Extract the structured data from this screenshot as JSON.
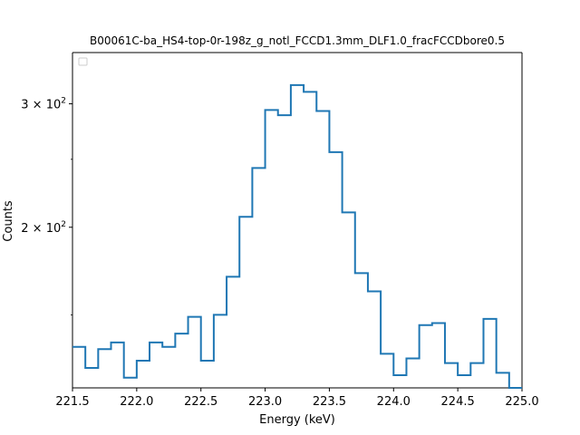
{
  "chart_data": {
    "type": "step",
    "title": "B00061C-ba_HS4-top-0r-198z_g_notl_FCCD1.3mm_DLF1.0_fracFCCDbore0.5",
    "xlabel": "Energy (keV)",
    "ylabel": "Counts",
    "xlim": [
      221.5,
      225.0
    ],
    "ylim": [
      118,
      355
    ],
    "yscale": "log",
    "x_ticks": [
      221.5,
      222.0,
      222.5,
      223.0,
      223.5,
      224.0,
      224.5,
      225.0
    ],
    "x_tick_labels": [
      "221.5",
      "222.0",
      "222.5",
      "223.0",
      "223.5",
      "224.0",
      "224.5",
      "225.0"
    ],
    "y_ticks": [
      200,
      300
    ],
    "y_tick_labels": [
      {
        "mantissa": "2 × 10",
        "exponent": "2"
      },
      {
        "mantissa": "3 × 10",
        "exponent": "2"
      }
    ],
    "legend": "top-left (empty)",
    "bin_edges": [
      221.5,
      221.6,
      221.7,
      221.8,
      221.9,
      222.0,
      222.1,
      222.2,
      222.3,
      222.4,
      222.5,
      222.6,
      222.7,
      222.8,
      222.9,
      223.0,
      223.1,
      223.2,
      223.3,
      223.4,
      223.5,
      223.6,
      223.7,
      223.8,
      223.9,
      224.0,
      224.1,
      224.2,
      224.3,
      224.4,
      224.5,
      224.6,
      224.7,
      224.8,
      224.9
    ],
    "counts": [
      135,
      126,
      134,
      137,
      122,
      129,
      137,
      135,
      141,
      149,
      129,
      150,
      170,
      207,
      243,
      294,
      289,
      319,
      312,
      293,
      256,
      210,
      172,
      162,
      132,
      123,
      130,
      145,
      146,
      128,
      123,
      128,
      148,
      124,
      118
    ],
    "line_color": "#1f77b4"
  }
}
